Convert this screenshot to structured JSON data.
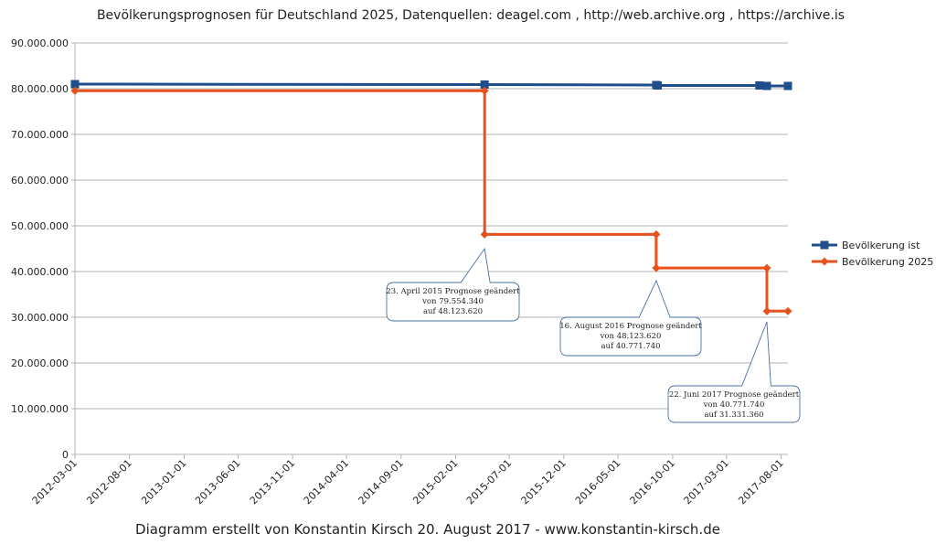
{
  "chart_data": {
    "type": "line",
    "title": "Bevölkerungsprognosen für Deutschland 2025, Datenquellen: deagel.com ,  http://web.archive.org ,  https://archive.is",
    "footer": "Diagramm erstellt von Konstantin Kirsch 20. August 2017 - www.konstantin-kirsch.de",
    "xlabel": "",
    "ylabel": "",
    "ylim": [
      0,
      90000000
    ],
    "yticks": [
      0,
      10000000,
      20000000,
      30000000,
      40000000,
      50000000,
      60000000,
      70000000,
      80000000,
      90000000
    ],
    "ytick_labels": [
      "0",
      "10.000.000",
      "20.000.000",
      "30.000.000",
      "40.000.000",
      "50.000.000",
      "60.000.000",
      "70.000.000",
      "80.000.000",
      "90.000.000"
    ],
    "xlim": [
      "2012-03-01",
      "2017-08-20"
    ],
    "xticks": [
      "2012-03-01",
      "2012-08-01",
      "2013-01-01",
      "2013-06-01",
      "2013-11-01",
      "2014-04-01",
      "2014-09-01",
      "2015-02-01",
      "2015-07-01",
      "2015-12-01",
      "2016-05-01",
      "2016-10-01",
      "2017-03-01",
      "2017-08-01"
    ],
    "grid": "horizontal",
    "legend": "right",
    "series": [
      {
        "name": "Bevölkerung ist",
        "color": "#1f4e8c",
        "marker": "square",
        "step": false,
        "x": [
          "2012-03-01",
          "2015-04-23",
          "2016-08-16",
          "2016-08-20",
          "2017-06-01",
          "2017-06-22",
          "2017-08-20"
        ],
        "values": [
          81000000,
          80900000,
          80800000,
          80700000,
          80700000,
          80600000,
          80600000
        ]
      },
      {
        "name": "Bevölkerung 2025",
        "color": "#e8511c",
        "marker": "diamond",
        "step": true,
        "x": [
          "2012-03-01",
          "2015-04-23",
          "2015-04-23",
          "2016-08-16",
          "2016-08-16",
          "2017-06-22",
          "2017-06-22",
          "2017-08-20"
        ],
        "values": [
          79554340,
          79554340,
          48123620,
          48123620,
          40771740,
          40771740,
          31331360,
          31331360
        ]
      }
    ],
    "annotations": [
      {
        "x": "2015-04-23",
        "y": 45000000,
        "lines": [
          "23. April 2015 Prognose geändert",
          "von 79.554.340",
          "auf 48.123.620"
        ]
      },
      {
        "x": "2016-08-16",
        "y": 38000000,
        "lines": [
          "16. August 2016 Prognose geändert",
          "von 48.123.620",
          "auf 40.771.740"
        ]
      },
      {
        "x": "2017-06-22",
        "y": 29000000,
        "lines": [
          "22. Juni 2017 Prognose geändert",
          "von 40.771.740",
          "auf 31.331.360"
        ]
      }
    ]
  }
}
